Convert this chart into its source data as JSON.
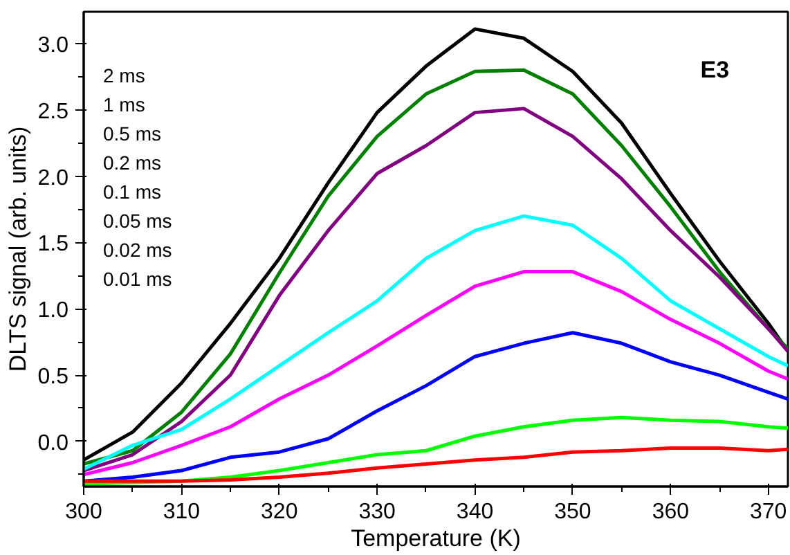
{
  "chart_data": {
    "type": "line",
    "xlabel": "Temperature (K)",
    "ylabel": "DLTS signal (arb. units)",
    "annotations": [
      "2 ms",
      "1 ms",
      "0.5 ms",
      "0.2 ms",
      "0.1 ms",
      "0.05 ms",
      "0.02 ms",
      "0.01 ms",
      "E3"
    ],
    "x": [
      300,
      305,
      310,
      315,
      320,
      325,
      330,
      335,
      340,
      345,
      350,
      355,
      360,
      365,
      370,
      372
    ],
    "series": [
      {
        "color": "#000000",
        "values": [
          -0.14,
          0.07,
          0.44,
          0.89,
          1.38,
          1.95,
          2.48,
          2.83,
          3.11,
          3.04,
          2.79,
          2.4,
          1.87,
          1.36,
          0.89,
          0.68
        ]
      },
      {
        "color": "#008000",
        "values": [
          -0.17,
          -0.07,
          0.22,
          0.66,
          1.27,
          1.85,
          2.3,
          2.62,
          2.79,
          2.8,
          2.62,
          2.23,
          1.77,
          1.28,
          0.85,
          0.7
        ]
      },
      {
        "color": "#800080",
        "values": [
          -0.22,
          -0.1,
          0.15,
          0.5,
          1.1,
          1.59,
          2.02,
          2.23,
          2.48,
          2.51,
          2.3,
          1.98,
          1.59,
          1.24,
          0.85,
          0.68
        ]
      },
      {
        "color": "#00ffff",
        "values": [
          -0.21,
          -0.03,
          0.09,
          0.32,
          0.57,
          0.82,
          1.06,
          1.38,
          1.59,
          1.7,
          1.63,
          1.38,
          1.06,
          0.85,
          0.64,
          0.57
        ]
      },
      {
        "color": "#ff00ff",
        "values": [
          -0.25,
          -0.16,
          -0.03,
          0.11,
          0.32,
          0.5,
          0.72,
          0.95,
          1.17,
          1.28,
          1.28,
          1.13,
          0.92,
          0.74,
          0.53,
          0.47
        ]
      },
      {
        "color": "#0000ff",
        "values": [
          -0.3,
          -0.27,
          -0.22,
          -0.12,
          -0.08,
          0.02,
          0.23,
          0.42,
          0.64,
          0.74,
          0.82,
          0.74,
          0.6,
          0.5,
          0.37,
          0.32
        ]
      },
      {
        "color": "#00ff00",
        "values": [
          -0.32,
          -0.31,
          -0.3,
          -0.27,
          -0.22,
          -0.16,
          -0.1,
          -0.07,
          0.04,
          0.11,
          0.16,
          0.18,
          0.16,
          0.15,
          0.11,
          0.1
        ]
      },
      {
        "color": "#ff0000",
        "values": [
          -0.3,
          -0.3,
          -0.3,
          -0.29,
          -0.27,
          -0.24,
          -0.2,
          -0.17,
          -0.14,
          -0.12,
          -0.08,
          -0.07,
          -0.05,
          -0.05,
          -0.07,
          -0.06
        ]
      }
    ],
    "xlim": [
      300,
      372
    ],
    "ylim": [
      -0.34,
      3.24
    ],
    "xticks": [
      300,
      310,
      320,
      330,
      340,
      350,
      360,
      370
    ],
    "yticks": [
      {
        "value": 0,
        "label": "0.0"
      },
      {
        "value": 0.5,
        "label": "0.5"
      },
      {
        "value": 1,
        "label": "1.0"
      },
      {
        "value": 1.5,
        "label": "1.5"
      },
      {
        "value": 2,
        "label": "2.0"
      },
      {
        "value": 2.5,
        "label": "2.5"
      },
      {
        "value": 3,
        "label": "3.0"
      }
    ],
    "grid": false,
    "marker": "none",
    "line_style": "solid"
  }
}
